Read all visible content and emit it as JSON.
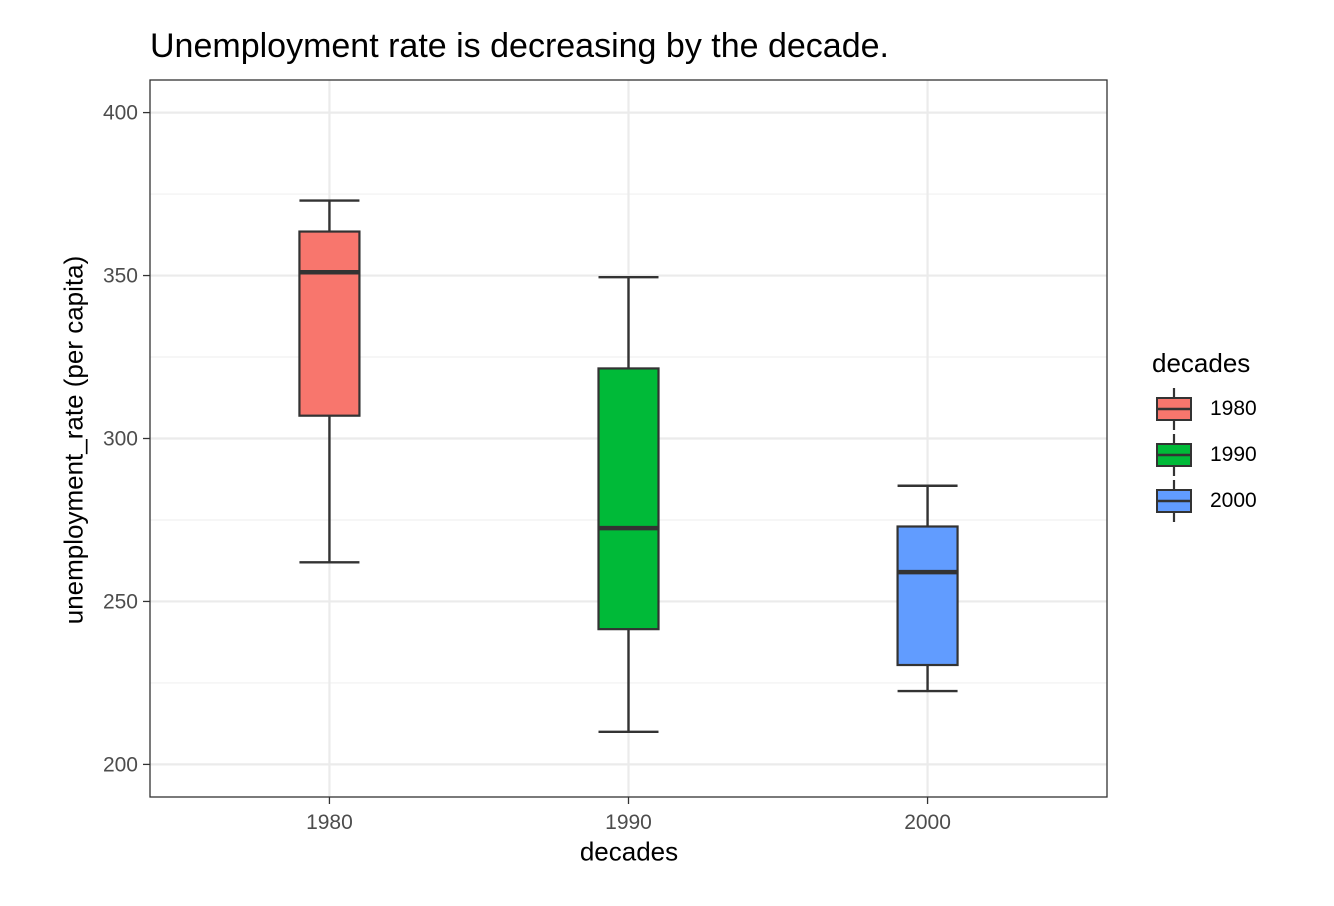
{
  "chart_data": {
    "type": "boxplot",
    "title": "Unemployment rate is decreasing by the decade.",
    "xlabel": "decades",
    "ylabel": "unemployment_rate (per capita)",
    "categories": [
      "1980",
      "1990",
      "2000"
    ],
    "ylim": [
      190,
      410
    ],
    "yticks": [
      200,
      250,
      300,
      350,
      400
    ],
    "grid": true,
    "legend": {
      "title": "decades",
      "position": "right"
    },
    "series": [
      {
        "name": "1980",
        "color": "#F8766D",
        "min": 262,
        "q1": 307,
        "median": 351,
        "q3": 363.5,
        "max": 373
      },
      {
        "name": "1990",
        "color": "#00BA38",
        "min": 210,
        "q1": 241.5,
        "median": 272.5,
        "q3": 321.5,
        "max": 349.5
      },
      {
        "name": "2000",
        "color": "#619CFF",
        "min": 222.5,
        "q1": 230.5,
        "median": 259,
        "q3": 273,
        "max": 285.5
      }
    ]
  }
}
